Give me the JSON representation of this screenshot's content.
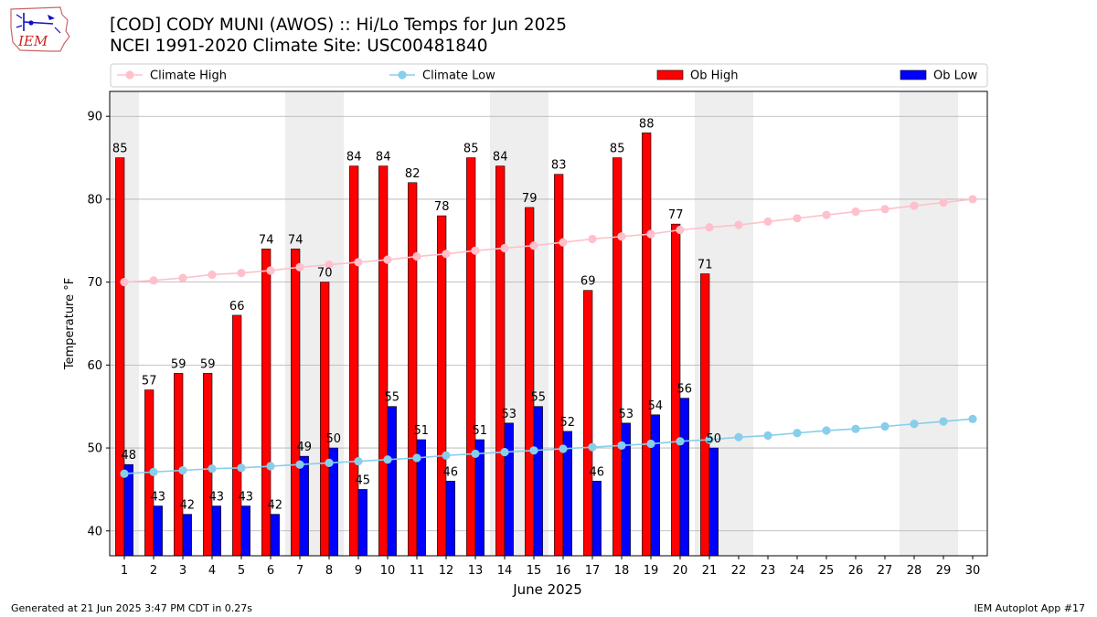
{
  "header": {
    "title_line1": "[COD] CODY MUNI (AWOS) :: Hi/Lo Temps for Jun 2025",
    "title_line2": "NCEI 1991-2020 Climate Site: USC00481840",
    "logo_text": "IEM"
  },
  "footer": {
    "generated": "Generated at 21 Jun 2025 3:47 PM CDT in 0.27s",
    "app": "IEM Autoplot App #17"
  },
  "colors": {
    "ob_high": "#ff0000",
    "ob_low": "#0000ff",
    "climate_high": "#ffc0cb",
    "climate_low": "#87ceeb",
    "weekend_shade": "#eeeeee",
    "grid": "#b0b0b0"
  },
  "chart_data": {
    "type": "bar",
    "xlabel": "June 2025",
    "ylabel": "Temperature $^\\circ$F",
    "ylabel_display": "Temperature °F",
    "ylim": [
      37,
      93
    ],
    "yticks": [
      40,
      50,
      60,
      70,
      80,
      90
    ],
    "grid": "horizontal",
    "legend": {
      "placement": "top",
      "entries": [
        "Climate High",
        "Climate Low",
        "Ob High",
        "Ob Low"
      ]
    },
    "weekend_days": [
      1,
      7,
      8,
      14,
      15,
      21,
      22,
      28,
      29
    ],
    "days": [
      1,
      2,
      3,
      4,
      5,
      6,
      7,
      8,
      9,
      10,
      11,
      12,
      13,
      14,
      15,
      16,
      17,
      18,
      19,
      20,
      21,
      22,
      23,
      24,
      25,
      26,
      27,
      28,
      29,
      30
    ],
    "series": [
      {
        "name": "Ob High",
        "kind": "bar",
        "values": [
          85,
          57,
          59,
          59,
          66,
          74,
          74,
          70,
          84,
          84,
          82,
          78,
          85,
          84,
          79,
          83,
          69,
          85,
          88,
          77,
          71
        ]
      },
      {
        "name": "Ob Low",
        "kind": "bar",
        "values": [
          48,
          43,
          42,
          43,
          43,
          42,
          49,
          50,
          45,
          55,
          51,
          46,
          51,
          53,
          55,
          52,
          46,
          53,
          54,
          56,
          50
        ]
      },
      {
        "name": "Climate High",
        "kind": "line",
        "values": [
          70.0,
          70.2,
          70.5,
          70.9,
          71.1,
          71.4,
          71.8,
          72.1,
          72.4,
          72.7,
          73.1,
          73.4,
          73.8,
          74.1,
          74.4,
          74.8,
          75.2,
          75.5,
          75.8,
          76.3,
          76.6,
          76.9,
          77.3,
          77.7,
          78.1,
          78.5,
          78.8,
          79.2,
          79.6,
          80.0
        ]
      },
      {
        "name": "Climate Low",
        "kind": "line",
        "values": [
          46.9,
          47.1,
          47.3,
          47.5,
          47.6,
          47.8,
          48.0,
          48.2,
          48.4,
          48.6,
          48.8,
          49.1,
          49.3,
          49.5,
          49.7,
          49.9,
          50.1,
          50.3,
          50.5,
          50.8,
          51.0,
          51.3,
          51.5,
          51.8,
          52.1,
          52.3,
          52.6,
          52.9,
          53.2,
          53.5
        ]
      }
    ]
  }
}
